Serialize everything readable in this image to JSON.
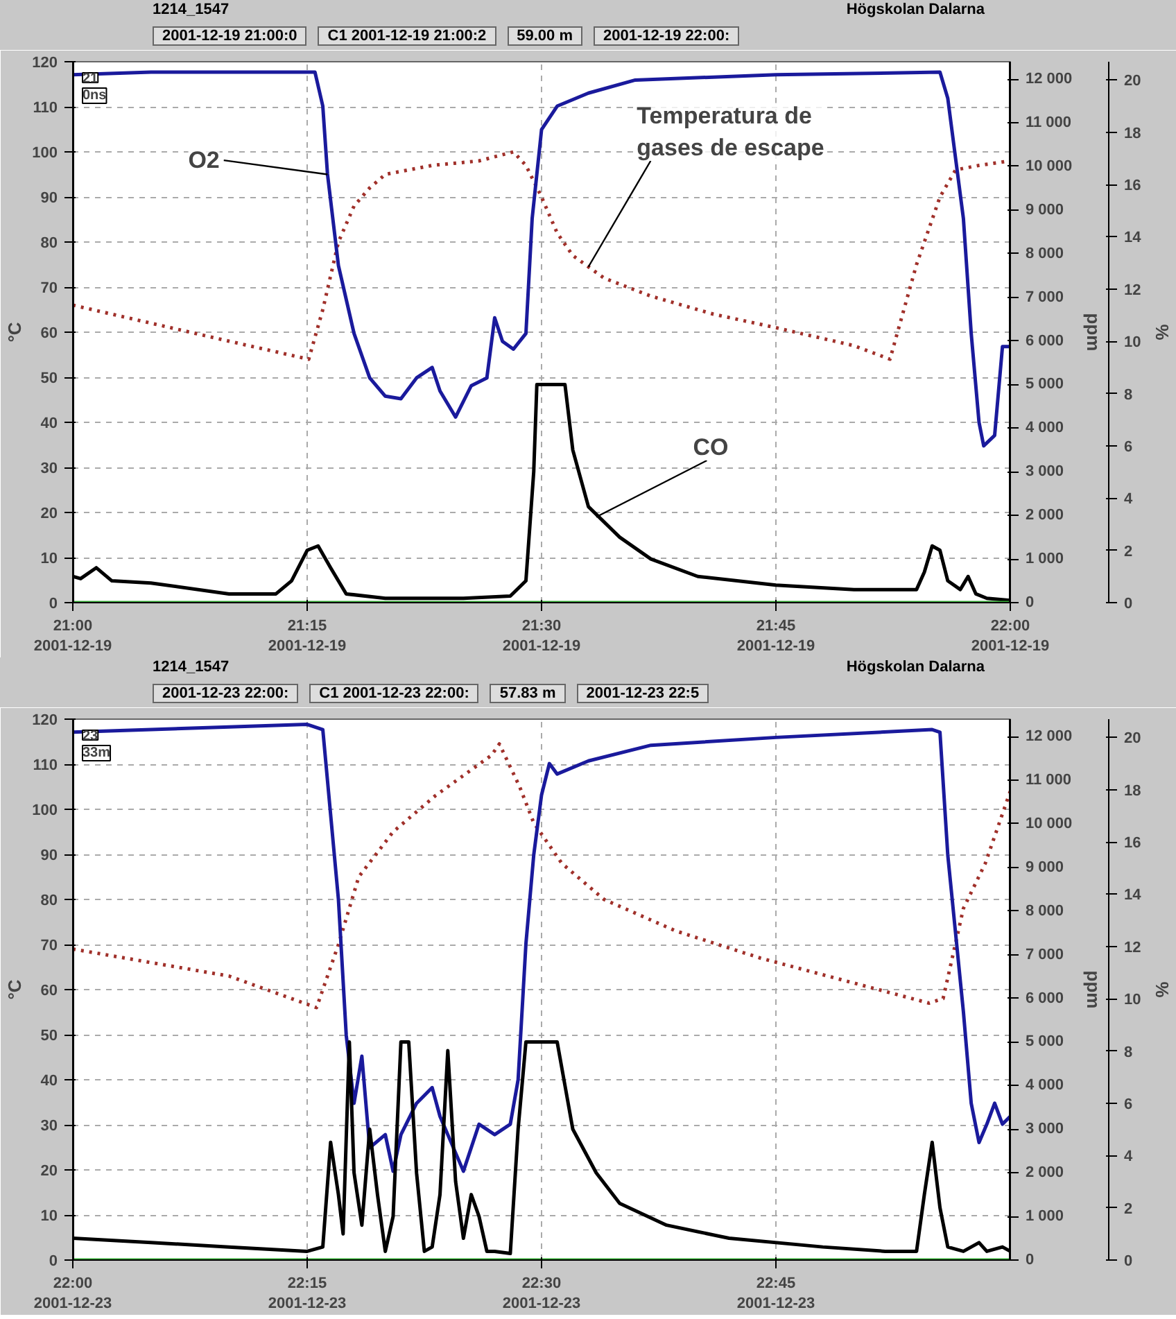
{
  "chart_data": [
    {
      "type": "line",
      "title": "1214_1547",
      "subtitle": "Högskolan Dalarna",
      "ylabel": "°C",
      "y2label": "ppm",
      "y3label": "%",
      "xlim": [
        "2001-12-19T21:00",
        "2001-12-19T22:00"
      ],
      "xticks": [
        {
          "value": "2001-12-19T21:00",
          "label": "21:00\n2001-12-19"
        },
        {
          "value": "2001-12-19T21:15",
          "label": "21:15\n2001-12-19"
        },
        {
          "value": "2001-12-19T21:30",
          "label": "21:30\n2001-12-19"
        },
        {
          "value": "2001-12-19T21:45",
          "label": "21:45\n2001-12-19"
        },
        {
          "value": "2001-12-19T22:00",
          "label": "22:00\n2001-12-19"
        }
      ],
      "ylim": [
        0,
        120
      ],
      "yticks": [
        0,
        10,
        20,
        30,
        40,
        50,
        60,
        70,
        80,
        90,
        100,
        110,
        120
      ],
      "y2lim": [
        0,
        12400
      ],
      "y2ticks": [
        0,
        {
          "value": 1000,
          "label": "1 000"
        },
        {
          "value": 2000,
          "label": "2 000"
        },
        {
          "value": 3000,
          "label": "3 000"
        },
        {
          "value": 4000,
          "label": "4 000"
        },
        {
          "value": 5000,
          "label": "5 000"
        },
        {
          "value": 6000,
          "label": "6 000"
        },
        {
          "value": 7000,
          "label": "7 000"
        },
        {
          "value": 8000,
          "label": "8 000"
        },
        {
          "value": 9000,
          "label": "9 000"
        },
        {
          "value": 10000,
          "label": "10 000"
        },
        {
          "value": 11000,
          "label": "11 000"
        },
        {
          "value": 12000,
          "label": "12 000"
        }
      ],
      "y3lim": [
        0,
        20.7
      ],
      "y3ticks": [
        0,
        2,
        4,
        6,
        8,
        10,
        12,
        14,
        16,
        18,
        20
      ],
      "grid": true,
      "series": [
        {
          "color": "#a0302a",
          "line_style": "dotted",
          "x": [
            "2001-12-19T21:00",
            "2001-12-19T21:05",
            "2001-12-19T21:10",
            "2001-12-19T21:15:06",
            "2001-12-19T21:16",
            "2001-12-19T21:17",
            "2001-12-19T21:18",
            "2001-12-19T21:19",
            "2001-12-19T21:20",
            "2001-12-19T21:23",
            "2001-12-19T21:26",
            "2001-12-19T21:28:12",
            "2001-12-19T21:29",
            "2001-12-19T21:30",
            "2001-12-19T21:31",
            "2001-12-19T21:32",
            "2001-12-19T21:34",
            "2001-12-19T21:37",
            "2001-12-19T21:41",
            "2001-12-19T21:45",
            "2001-12-19T21:50",
            "2001-12-19T21:52:18",
            "2001-12-19T21:54",
            "2001-12-19T21:55:30",
            "2001-12-19T21:56:30",
            "2001-12-19T21:58",
            "2001-12-19T22:00"
          ],
          "values": [
            66,
            62,
            58,
            54,
            65,
            80,
            88,
            92,
            95,
            97,
            98,
            100,
            97,
            90,
            82,
            77,
            72,
            68,
            64,
            61,
            57,
            54,
            75,
            90,
            96,
            97,
            98
          ]
        },
        {
          "color": "#1a1a9c",
          "axis": "y3",
          "x": [
            "2001-12-19T21:00",
            "2001-12-19T21:05",
            "2001-12-19T21:10",
            "2001-12-19T21:15:30",
            "2001-12-19T21:16",
            "2001-12-19T21:16:18",
            "2001-12-19T21:17",
            "2001-12-19T21:18",
            "2001-12-19T21:19",
            "2001-12-19T21:20",
            "2001-12-19T21:21",
            "2001-12-19T21:22",
            "2001-12-19T21:23",
            "2001-12-19T21:23:30",
            "2001-12-19T21:24:30",
            "2001-12-19T21:25:30",
            "2001-12-19T21:26:30",
            "2001-12-19T21:27",
            "2001-12-19T21:27:30",
            "2001-12-19T21:28:12",
            "2001-12-19T21:29",
            "2001-12-19T21:29:24",
            "2001-12-19T21:30",
            "2001-12-19T21:31",
            "2001-12-19T21:33",
            "2001-12-19T21:36",
            "2001-12-19T21:45",
            "2001-12-19T21:55:30",
            "2001-12-19T21:56",
            "2001-12-19T21:57",
            "2001-12-19T21:57:30",
            "2001-12-19T21:58",
            "2001-12-19T21:58:18",
            "2001-12-19T21:59",
            "2001-12-19T21:59:30",
            "2001-12-19T22:00"
          ],
          "values": [
            20.2,
            20.3,
            20.3,
            20.3,
            19.0,
            16.4,
            12.9,
            10.3,
            8.6,
            7.9,
            7.8,
            8.6,
            9.0,
            8.1,
            7.1,
            8.3,
            8.6,
            10.9,
            10.0,
            9.7,
            10.3,
            14.7,
            18.1,
            19.0,
            19.5,
            20.0,
            20.2,
            20.3,
            19.3,
            14.7,
            10.3,
            6.9,
            6.0,
            6.4,
            9.8,
            9.8
          ]
        },
        {
          "color": "#000000",
          "axis": "y2",
          "x": [
            "2001-12-19T21:00",
            "2001-12-19T21:00:30",
            "2001-12-19T21:01:30",
            "2001-12-19T21:02:30",
            "2001-12-19T21:05",
            "2001-12-19T21:10",
            "2001-12-19T21:13",
            "2001-12-19T21:14",
            "2001-12-19T21:15",
            "2001-12-19T21:15:42",
            "2001-12-19T21:16:30",
            "2001-12-19T21:17:30",
            "2001-12-19T21:20",
            "2001-12-19T21:25",
            "2001-12-19T21:28",
            "2001-12-19T21:29",
            "2001-12-19T21:29:30",
            "2001-12-19T21:29:42",
            "2001-12-19T21:31:30",
            "2001-12-19T21:32",
            "2001-12-19T21:33",
            "2001-12-19T21:35",
            "2001-12-19T21:37",
            "2001-12-19T21:40",
            "2001-12-19T21:45",
            "2001-12-19T21:50",
            "2001-12-19T21:54",
            "2001-12-19T21:54:30",
            "2001-12-19T21:55",
            "2001-12-19T21:55:30",
            "2001-12-19T21:56",
            "2001-12-19T21:56:48",
            "2001-12-19T21:57:18",
            "2001-12-19T21:57:48",
            "2001-12-19T21:58:30",
            "2001-12-19T22:00"
          ],
          "values": [
            600,
            550,
            800,
            500,
            450,
            200,
            200,
            500,
            1200,
            1300,
            800,
            200,
            100,
            100,
            150,
            500,
            3000,
            5000,
            5000,
            3500,
            2200,
            1500,
            1000,
            600,
            400,
            300,
            300,
            700,
            1300,
            1200,
            500,
            300,
            600,
            200,
            100,
            50
          ]
        },
        {
          "color": "#33aa33",
          "x": [
            "2001-12-19T21:00",
            "2001-12-19T22:00"
          ],
          "values": [
            0,
            0
          ]
        }
      ],
      "ref_lines": [
        {
          "axis": "x",
          "value": "2001-12-19T21:00",
          "color": "#000000"
        },
        {
          "axis": "x",
          "value": "2001-12-19T22:00",
          "color": "#000000"
        }
      ],
      "annotations": [
        "2001-12-19 21:00:0",
        "C1 2001-12-19 21:00:2",
        "59.00 m",
        "2001-12-19 22:00:",
        "21",
        "0ns",
        {
          "text": "O2",
          "x": "2001-12-19T21:16:18",
          "y": 95
        },
        {
          "text": "Temperatura de\ngases de escape",
          "x": "2001-12-19T21:33",
          "y": 74.5
        },
        {
          "text": "CO",
          "x": "2001-12-19T21:33:30",
          "y": 19
        }
      ]
    },
    {
      "type": "line",
      "title": "1214_1547",
      "subtitle": "Högskolan Dalarna",
      "ylabel": "°C",
      "y2label": "ppm",
      "y3label": "%",
      "xlim": [
        "2001-12-23T22:00",
        "2001-12-23T23:00"
      ],
      "xticks": [
        {
          "value": "2001-12-23T22:00",
          "label": "22:00\n2001-12-23"
        },
        {
          "value": "2001-12-23T22:15",
          "label": "22:15\n2001-12-23"
        },
        {
          "value": "2001-12-23T22:30",
          "label": "22:30\n2001-12-23"
        },
        {
          "value": "2001-12-23T22:45",
          "label": "22:45\n2001-12-23"
        }
      ],
      "ylim": [
        0,
        120
      ],
      "yticks": [
        0,
        10,
        20,
        30,
        40,
        50,
        60,
        70,
        80,
        90,
        100,
        110,
        120
      ],
      "y2lim": [
        0,
        12400
      ],
      "y2ticks": [
        0,
        {
          "value": 1000,
          "label": "1 000"
        },
        {
          "value": 2000,
          "label": "2 000"
        },
        {
          "value": 3000,
          "label": "3 000"
        },
        {
          "value": 4000,
          "label": "4 000"
        },
        {
          "value": 5000,
          "label": "5 000"
        },
        {
          "value": 6000,
          "label": "6 000"
        },
        {
          "value": 7000,
          "label": "7 000"
        },
        {
          "value": 8000,
          "label": "8 000"
        },
        {
          "value": 9000,
          "label": "9 000"
        },
        {
          "value": 10000,
          "label": "10 000"
        },
        {
          "value": 11000,
          "label": "11 000"
        },
        {
          "value": 12000,
          "label": "12 000"
        }
      ],
      "y3lim": [
        0,
        20.7
      ],
      "y3ticks": [
        0,
        2,
        4,
        6,
        8,
        10,
        12,
        14,
        16,
        18,
        20
      ],
      "grid": true,
      "series": [
        {
          "color": "#a0302a",
          "line_style": "dotted",
          "x": [
            "2001-12-23T22:00",
            "2001-12-23T22:05",
            "2001-12-23T22:10",
            "2001-12-23T22:15:36",
            "2001-12-23T22:17",
            "2001-12-23T22:18:18",
            "2001-12-23T22:20:30",
            "2001-12-23T22:23:12",
            "2001-12-23T22:26:48",
            "2001-12-23T22:27:18",
            "2001-12-23T22:28:36",
            "2001-12-23T22:29:30",
            "2001-12-23T22:31:18",
            "2001-12-23T22:34",
            "2001-12-23T22:38:36",
            "2001-12-23T22:44",
            "2001-12-23T22:49:24",
            "2001-12-23T22:54:48",
            "2001-12-23T22:55:42",
            "2001-12-23T22:57",
            "2001-12-23T22:58:24",
            "2001-12-23T23:00"
          ],
          "values": [
            69,
            66,
            63,
            56,
            70,
            85,
            95,
            103,
            112,
            114.5,
            105,
            97,
            88,
            80,
            73,
            67,
            62,
            57,
            58,
            78,
            88,
            104
          ]
        },
        {
          "color": "#1a1a9c",
          "axis": "y3",
          "x": [
            "2001-12-23T22:00",
            "2001-12-23T22:10",
            "2001-12-23T22:15",
            "2001-12-23T22:16",
            "2001-12-23T22:17",
            "2001-12-23T22:17:30",
            "2001-12-23T22:18",
            "2001-12-23T22:18:30",
            "2001-12-23T22:19",
            "2001-12-23T22:20",
            "2001-12-23T22:20:30",
            "2001-12-23T22:21",
            "2001-12-23T22:22",
            "2001-12-23T22:23",
            "2001-12-23T22:23:30",
            "2001-12-23T22:24",
            "2001-12-23T22:25",
            "2001-12-23T22:26",
            "2001-12-23T22:27",
            "2001-12-23T22:28",
            "2001-12-23T22:28:30",
            "2001-12-23T22:29",
            "2001-12-23T22:29:30",
            "2001-12-23T22:30",
            "2001-12-23T22:30:30",
            "2001-12-23T22:31",
            "2001-12-23T22:33",
            "2001-12-23T22:37",
            "2001-12-23T22:45",
            "2001-12-23T22:55",
            "2001-12-23T22:55:30",
            "2001-12-23T22:56",
            "2001-12-23T22:57",
            "2001-12-23T22:57:30",
            "2001-12-23T22:58",
            "2001-12-23T22:58:30",
            "2001-12-23T22:59",
            "2001-12-23T22:59:30",
            "2001-12-23T23:00"
          ],
          "values": [
            20.2,
            20.4,
            20.5,
            20.3,
            13.8,
            8.6,
            6.0,
            7.8,
            4.3,
            4.8,
            3.4,
            4.8,
            6.0,
            6.6,
            5.5,
            4.8,
            3.4,
            5.2,
            4.8,
            5.2,
            6.9,
            12.1,
            15.5,
            17.8,
            19.0,
            18.6,
            19.1,
            19.7,
            20.0,
            20.3,
            20.2,
            15.5,
            9.5,
            6.0,
            4.5,
            5.2,
            6.0,
            5.2,
            5.5
          ]
        },
        {
          "color": "#000000",
          "axis": "y2",
          "x": [
            "2001-12-23T22:00",
            "2001-12-23T22:05",
            "2001-12-23T22:10",
            "2001-12-23T22:15",
            "2001-12-23T22:16",
            "2001-12-23T22:16:30",
            "2001-12-23T22:17",
            "2001-12-23T22:17:18",
            "2001-12-23T22:17:42",
            "2001-12-23T22:18",
            "2001-12-23T22:18:30",
            "2001-12-23T22:19",
            "2001-12-23T22:19:30",
            "2001-12-23T22:20",
            "2001-12-23T22:20:30",
            "2001-12-23T22:21",
            "2001-12-23T22:21:30",
            "2001-12-23T22:22",
            "2001-12-23T22:22:30",
            "2001-12-23T22:23",
            "2001-12-23T22:23:30",
            "2001-12-23T22:24",
            "2001-12-23T22:24:30",
            "2001-12-23T22:25",
            "2001-12-23T22:25:30",
            "2001-12-23T22:26",
            "2001-12-23T22:26:30",
            "2001-12-23T22:27",
            "2001-12-23T22:28",
            "2001-12-23T22:28:30",
            "2001-12-23T22:29",
            "2001-12-23T22:31",
            "2001-12-23T22:31:30",
            "2001-12-23T22:32",
            "2001-12-23T22:33:30",
            "2001-12-23T22:35",
            "2001-12-23T22:38",
            "2001-12-23T22:42",
            "2001-12-23T22:48",
            "2001-12-23T22:52",
            "2001-12-23T22:54",
            "2001-12-23T22:54:30",
            "2001-12-23T22:55",
            "2001-12-23T22:55:30",
            "2001-12-23T22:56",
            "2001-12-23T22:57",
            "2001-12-23T22:58",
            "2001-12-23T22:58:30",
            "2001-12-23T22:59:30",
            "2001-12-23T23:00"
          ],
          "values": [
            500,
            400,
            300,
            200,
            300,
            2700,
            1500,
            600,
            5000,
            2000,
            800,
            3000,
            1500,
            200,
            1000,
            5000,
            5000,
            2000,
            200,
            300,
            1500,
            4800,
            1800,
            500,
            1500,
            1000,
            200,
            200,
            150,
            3000,
            5000,
            5000,
            4000,
            3000,
            2000,
            1300,
            800,
            500,
            300,
            200,
            200,
            1500,
            2700,
            1200,
            300,
            200,
            400,
            200,
            300,
            200
          ]
        },
        {
          "color": "#33aa33",
          "x": [
            "2001-12-23T22:00",
            "2001-12-23T23:00"
          ],
          "values": [
            0,
            0
          ]
        }
      ],
      "ref_lines": [
        {
          "axis": "x",
          "value": "2001-12-23T22:00",
          "color": "#000000"
        },
        {
          "axis": "x",
          "value": "2001-12-23T23:00",
          "color": "#000000"
        }
      ],
      "annotations": [
        "2001-12-23 22:00:",
        "C1 2001-12-23 22:00:",
        "57.83 m",
        "2001-12-23 22:5",
        "23",
        "33m"
      ]
    }
  ]
}
